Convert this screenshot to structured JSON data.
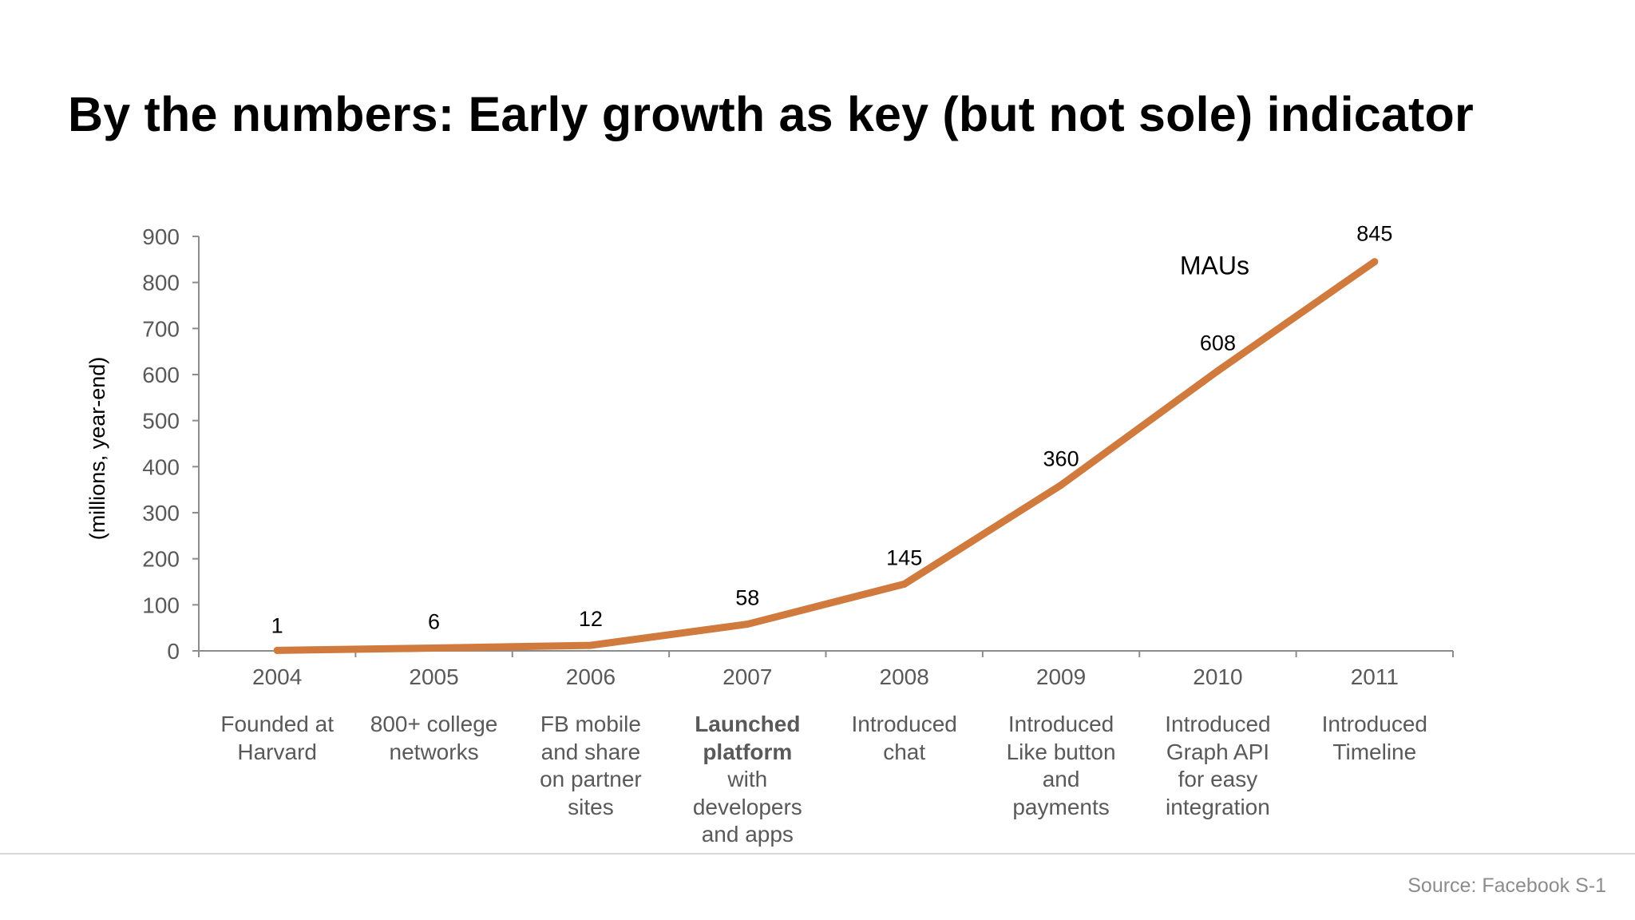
{
  "title": "By the numbers: Early growth as key (but not sole) indicator",
  "source": "Source: Facebook S-1",
  "colors": {
    "line": "#d07a3e",
    "axis": "#8c8c8c",
    "tick_text": "#595959",
    "annotation_text": "#595959"
  },
  "chart_data": {
    "type": "line",
    "categories": [
      "2004",
      "2005",
      "2006",
      "2007",
      "2008",
      "2009",
      "2010",
      "2011"
    ],
    "series": [
      {
        "name": "MAUs",
        "values": [
          1,
          6,
          12,
          58,
          145,
          360,
          608,
          845
        ]
      }
    ],
    "data_labels": [
      "1",
      "6",
      "12",
      "58",
      "145",
      "360",
      "608",
      "845"
    ],
    "ylabel": "(millions, year-end)",
    "xlabel": "",
    "ylim": [
      0,
      900
    ],
    "yticks": [
      0,
      100,
      200,
      300,
      400,
      500,
      600,
      700,
      800,
      900
    ],
    "grid": false,
    "legend": "series label near line end"
  },
  "annotations": [
    {
      "lines": [
        {
          "text": "Founded at",
          "bold": false
        },
        {
          "text": "Harvard",
          "bold": false
        }
      ]
    },
    {
      "lines": [
        {
          "text": "800+ college",
          "bold": false
        },
        {
          "text": "networks",
          "bold": false
        }
      ]
    },
    {
      "lines": [
        {
          "text": "FB mobile",
          "bold": false
        },
        {
          "text": "and share",
          "bold": false
        },
        {
          "text": "on partner",
          "bold": false
        },
        {
          "text": "sites",
          "bold": false
        }
      ]
    },
    {
      "lines": [
        {
          "text": "Launched",
          "bold": true
        },
        {
          "text": "platform",
          "bold": true
        },
        {
          "text": "with",
          "bold": false
        },
        {
          "text": "developers",
          "bold": false
        },
        {
          "text": "and apps",
          "bold": false
        }
      ]
    },
    {
      "lines": [
        {
          "text": "Introduced",
          "bold": false
        },
        {
          "text": "chat",
          "bold": false
        }
      ]
    },
    {
      "lines": [
        {
          "text": "Introduced",
          "bold": false
        },
        {
          "text": "Like button",
          "bold": false
        },
        {
          "text": "and",
          "bold": false
        },
        {
          "text": "payments",
          "bold": false
        }
      ]
    },
    {
      "lines": [
        {
          "text": "Introduced",
          "bold": false
        },
        {
          "text": "Graph API",
          "bold": false
        },
        {
          "text": "for easy",
          "bold": false
        },
        {
          "text": "integration",
          "bold": false
        }
      ]
    },
    {
      "lines": [
        {
          "text": "Introduced",
          "bold": false
        },
        {
          "text": "Timeline",
          "bold": false
        }
      ]
    }
  ]
}
